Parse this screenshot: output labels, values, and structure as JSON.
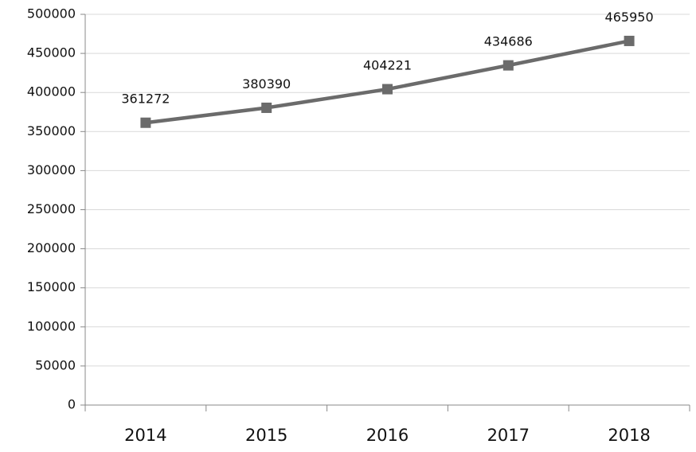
{
  "chart_data": {
    "type": "line",
    "categories": [
      "2014",
      "2015",
      "2016",
      "2017",
      "2018"
    ],
    "series": [
      {
        "name": null,
        "color": "#6b6b6b",
        "values": [
          361272,
          380390,
          404221,
          434686,
          465950
        ]
      }
    ],
    "ylim": [
      0,
      500000
    ],
    "yticks": [
      0,
      50000,
      100000,
      150000,
      200000,
      250000,
      300000,
      350000,
      400000,
      450000,
      500000
    ],
    "grid": true
  }
}
